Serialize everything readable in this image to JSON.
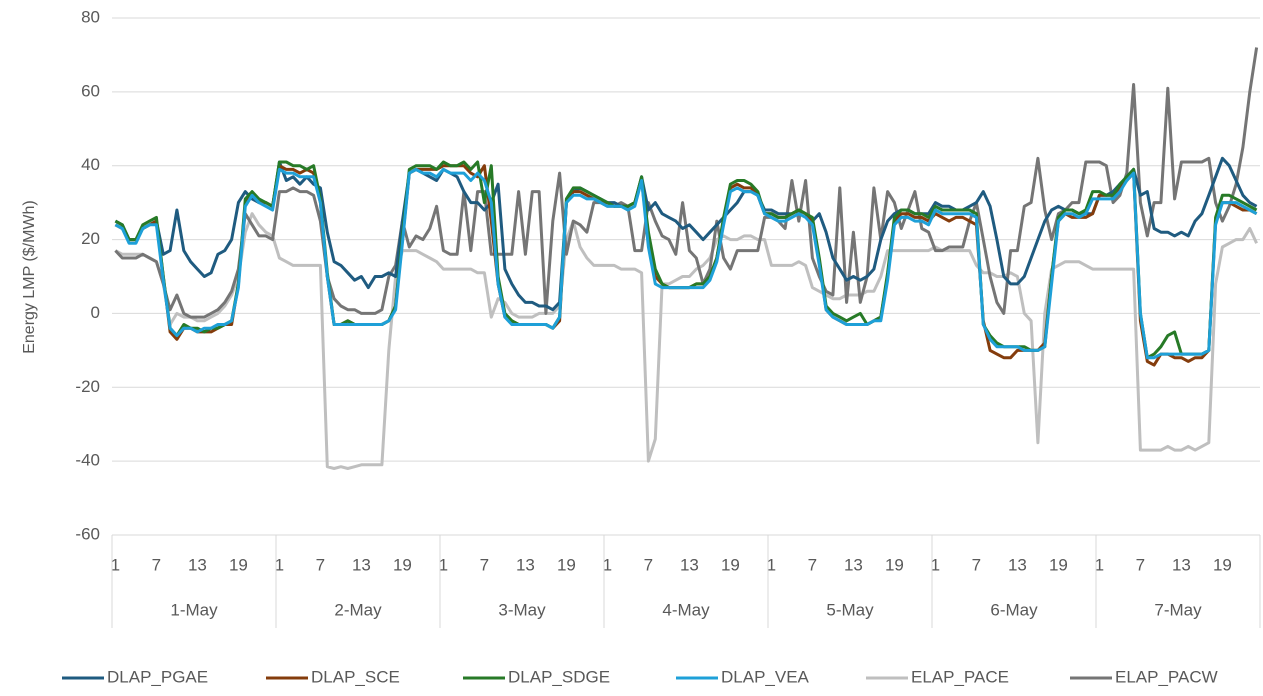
{
  "chart_data": {
    "type": "line",
    "y_label": "Energy LMP ($/MWh)",
    "ylim": [
      -60,
      80
    ],
    "yticks": [
      -60,
      -40,
      -20,
      0,
      20,
      40,
      60,
      80
    ],
    "grid": true,
    "legend": "bottom",
    "groups": [
      "1-May",
      "2-May",
      "3-May",
      "4-May",
      "5-May",
      "6-May",
      "7-May"
    ],
    "categories": [
      "1",
      null,
      null,
      null,
      null,
      null,
      "7",
      null,
      null,
      null,
      null,
      null,
      "13",
      null,
      null,
      null,
      null,
      null,
      "19",
      null,
      null,
      null,
      null,
      null,
      "1",
      null,
      null,
      null,
      null,
      null,
      "7",
      null,
      null,
      null,
      null,
      null,
      "13",
      null,
      null,
      null,
      null,
      null,
      "19",
      null,
      null,
      null,
      null,
      null,
      "1",
      null,
      null,
      null,
      null,
      null,
      "7",
      null,
      null,
      null,
      null,
      null,
      "13",
      null,
      null,
      null,
      null,
      null,
      "19",
      null,
      null,
      null,
      null,
      null,
      "1",
      null,
      null,
      null,
      null,
      null,
      "7",
      null,
      null,
      null,
      null,
      null,
      "13",
      null,
      null,
      null,
      null,
      null,
      "19",
      null,
      null,
      null,
      null,
      null,
      "1",
      null,
      null,
      null,
      null,
      null,
      "7",
      null,
      null,
      null,
      null,
      null,
      "13",
      null,
      null,
      null,
      null,
      null,
      "19",
      null,
      null,
      null,
      null,
      null,
      "1",
      null,
      null,
      null,
      null,
      null,
      "7",
      null,
      null,
      null,
      null,
      null,
      "13",
      null,
      null,
      null,
      null,
      null,
      "19",
      null,
      null,
      null,
      null,
      null,
      "1",
      null,
      null,
      null,
      null,
      null,
      "7",
      null,
      null,
      null,
      null,
      null,
      "13",
      null,
      null,
      null,
      null,
      null,
      "19",
      null,
      null,
      null,
      null,
      null
    ],
    "series": [
      {
        "name": "DLAP_PGAE",
        "color": "#1f5b80",
        "values": [
          25,
          24,
          20,
          20,
          23,
          24,
          25,
          16,
          17,
          28,
          17,
          14,
          12,
          10,
          11,
          16,
          17,
          20,
          30,
          33,
          31,
          30,
          30,
          29,
          41,
          36,
          37,
          35,
          37,
          35,
          34,
          22,
          14,
          13,
          11,
          9,
          10,
          7,
          10,
          10,
          11,
          10,
          25,
          38,
          39,
          38,
          37,
          36,
          39,
          38,
          37,
          33,
          30,
          30,
          28,
          30,
          35,
          12,
          8,
          5,
          3,
          3,
          2,
          2,
          1,
          3,
          30,
          33,
          34,
          33,
          32,
          31,
          30,
          30,
          29,
          29,
          30,
          37,
          28,
          30,
          27,
          26,
          25,
          23,
          24,
          22,
          20,
          22,
          24,
          26,
          28,
          30,
          33,
          33,
          32,
          28,
          28,
          27,
          27,
          27,
          28,
          27,
          25,
          27,
          22,
          15,
          12,
          9,
          10,
          9,
          10,
          12,
          20,
          25,
          27,
          28,
          28,
          27,
          27,
          27,
          30,
          29,
          29,
          28,
          28,
          29,
          30,
          33,
          29,
          20,
          10,
          8,
          8,
          10,
          15,
          20,
          25,
          28,
          29,
          28,
          28,
          27,
          27,
          27,
          32,
          32,
          33,
          35,
          37,
          39,
          32,
          33,
          23,
          22,
          22,
          21,
          22,
          21,
          25,
          27,
          32,
          37,
          42,
          40,
          36,
          32,
          30,
          29
        ]
      },
      {
        "name": "DLAP_SCE",
        "color": "#843c0c",
        "values": [
          24,
          23,
          20,
          20,
          23,
          24,
          25,
          10,
          -5,
          -7,
          -4,
          -4,
          -5,
          -5,
          -5,
          -4,
          -3,
          -3,
          8,
          30,
          32,
          30,
          30,
          29,
          40,
          39,
          39,
          38,
          39,
          38,
          30,
          10,
          -3,
          -3,
          -2,
          -3,
          -3,
          -3,
          -3,
          -3,
          -2,
          2,
          20,
          38,
          39,
          39,
          39,
          39,
          40,
          40,
          40,
          40,
          38,
          37,
          40,
          25,
          8,
          -1,
          -2,
          -3,
          -3,
          -3,
          -3,
          -3,
          -4,
          -2,
          30,
          33,
          33,
          32,
          31,
          30,
          30,
          29,
          29,
          29,
          30,
          36,
          20,
          10,
          8,
          7,
          7,
          7,
          7,
          8,
          8,
          10,
          15,
          25,
          34,
          35,
          34,
          34,
          32,
          27,
          27,
          26,
          26,
          27,
          28,
          27,
          25,
          14,
          1,
          -1,
          -2,
          -3,
          -3,
          -3,
          -3,
          -2,
          -1,
          10,
          25,
          27,
          27,
          26,
          26,
          25,
          27,
          26,
          25,
          26,
          26,
          25,
          24,
          -2,
          -10,
          -11,
          -12,
          -12,
          -10,
          -10,
          -10,
          -10,
          -8,
          10,
          25,
          27,
          26,
          26,
          26,
          27,
          32,
          32,
          32,
          34,
          36,
          38,
          -2,
          -13,
          -14,
          -11,
          -11,
          -12,
          -12,
          -13,
          -12,
          -12,
          -10,
          25,
          30,
          30,
          29,
          28,
          28,
          27
        ]
      },
      {
        "name": "DLAP_SDGE",
        "color": "#277a27",
        "values": [
          25,
          24,
          20,
          20,
          24,
          25,
          26,
          10,
          -4,
          -6,
          -3,
          -4,
          -4,
          -5,
          -4,
          -4,
          -3,
          -2,
          8,
          31,
          33,
          31,
          30,
          29,
          41,
          41,
          40,
          40,
          39,
          40,
          31,
          11,
          -3,
          -3,
          -2,
          -3,
          -3,
          -3,
          -3,
          -3,
          -2,
          2,
          21,
          39,
          40,
          40,
          40,
          39,
          41,
          40,
          40,
          41,
          39,
          41,
          30,
          40,
          10,
          0,
          -2,
          -3,
          -3,
          -3,
          -3,
          -3,
          -4,
          -1,
          31,
          34,
          34,
          33,
          32,
          31,
          30,
          29,
          29,
          29,
          30,
          37,
          22,
          12,
          8,
          7,
          7,
          7,
          7,
          8,
          8,
          10,
          15,
          26,
          35,
          36,
          36,
          35,
          33,
          27,
          27,
          26,
          26,
          27,
          28,
          27,
          26,
          15,
          2,
          0,
          -1,
          -2,
          -1,
          0,
          -3,
          -2,
          -1,
          11,
          26,
          28,
          28,
          27,
          27,
          26,
          29,
          28,
          28,
          28,
          28,
          28,
          27,
          -3,
          -6,
          -8,
          -9,
          -9,
          -9,
          -9,
          -10,
          -10,
          -9,
          10,
          26,
          28,
          28,
          27,
          28,
          33,
          33,
          32,
          32,
          35,
          37,
          39,
          0,
          -12,
          -11,
          -9,
          -6,
          -5,
          -11,
          -11,
          -11,
          -11,
          -10,
          26,
          32,
          32,
          31,
          30,
          29,
          28
        ]
      },
      {
        "name": "DLAP_VEA",
        "color": "#1ea0d8",
        "values": [
          24,
          23,
          19,
          19,
          23,
          24,
          24,
          9,
          -4,
          -6,
          -4,
          -4,
          -5,
          -4,
          -4,
          -3,
          -3,
          -2,
          7,
          29,
          32,
          30,
          29,
          28,
          39,
          38,
          38,
          37,
          37,
          37,
          30,
          10,
          -3,
          -3,
          -3,
          -3,
          -3,
          -3,
          -3,
          -3,
          -2,
          1,
          19,
          38,
          39,
          38,
          38,
          37,
          39,
          38,
          38,
          38,
          36,
          38,
          36,
          30,
          8,
          -1,
          -3,
          -3,
          -3,
          -3,
          -3,
          -3,
          -4,
          -1,
          30,
          32,
          32,
          31,
          31,
          30,
          29,
          29,
          29,
          28,
          29,
          36,
          18,
          8,
          7,
          7,
          7,
          7,
          7,
          7,
          7,
          9,
          14,
          24,
          33,
          34,
          33,
          33,
          32,
          27,
          26,
          25,
          25,
          26,
          27,
          26,
          24,
          13,
          1,
          -1,
          -2,
          -3,
          -3,
          -3,
          -3,
          -2,
          -2,
          9,
          24,
          26,
          26,
          25,
          25,
          24,
          28,
          27,
          27,
          27,
          27,
          27,
          26,
          -3,
          -7,
          -9,
          -9,
          -9,
          -9,
          -10,
          -10,
          -10,
          -9,
          8,
          25,
          27,
          27,
          26,
          27,
          31,
          31,
          31,
          31,
          33,
          36,
          38,
          0,
          -12,
          -12,
          -11,
          -11,
          -11,
          -11,
          -11,
          -11,
          -11,
          -10,
          24,
          30,
          30,
          30,
          29,
          28,
          27
        ]
      },
      {
        "name": "ELAP_PACE",
        "color": "#bfbfbf",
        "values": [
          17,
          16,
          16,
          16,
          16,
          15,
          14,
          8,
          -3,
          0,
          -1,
          -1,
          -2,
          -2,
          -1,
          0,
          2,
          5,
          10,
          22,
          27,
          24,
          22,
          21,
          15,
          14,
          13,
          13,
          13,
          13,
          13,
          -41.5,
          -42,
          -41.5,
          -42,
          -41.5,
          -41,
          -41,
          -41,
          -41,
          -10,
          10,
          17,
          17,
          17,
          16,
          15,
          14,
          12,
          12,
          12,
          12,
          12,
          11,
          11,
          -1,
          4,
          3,
          0,
          -1,
          -1,
          -1,
          0,
          0,
          0,
          2,
          20,
          25,
          18,
          15,
          13,
          13,
          13,
          13,
          12,
          12,
          12,
          11,
          -40,
          -34,
          8,
          8,
          9,
          10,
          10,
          12,
          13,
          15,
          20,
          21,
          20,
          20,
          21,
          21,
          20,
          20,
          13,
          13,
          13,
          13,
          14,
          13,
          7,
          6,
          5,
          4,
          4,
          5,
          5,
          5,
          6,
          6,
          10,
          17,
          17,
          17,
          17,
          17,
          17,
          17,
          18,
          17,
          17,
          17,
          17,
          17,
          13,
          11,
          11,
          10,
          10,
          11,
          10,
          0,
          -2,
          -35,
          0,
          12,
          13,
          14,
          14,
          14,
          13,
          12,
          12,
          12,
          12,
          12,
          12,
          12,
          -37,
          -37,
          -37,
          -37,
          -36,
          -37,
          -37,
          -36,
          -37,
          -36,
          -35,
          8,
          18,
          19,
          20,
          20,
          23,
          19
        ]
      },
      {
        "name": "ELAP_PACW",
        "color": "#757575",
        "values": [
          17,
          15,
          15,
          15,
          16,
          15,
          14,
          8,
          1,
          5,
          0,
          -1,
          -1,
          -1,
          0,
          1,
          3,
          6,
          12,
          27,
          24,
          21,
          21,
          20,
          33,
          33,
          34,
          33,
          33,
          32,
          25,
          10,
          4,
          2,
          1,
          1,
          0,
          0,
          0,
          1,
          10,
          13,
          25,
          18,
          21,
          20,
          23,
          29,
          17,
          16,
          16,
          33,
          17,
          33,
          33,
          16,
          16,
          16,
          16,
          33,
          16,
          33,
          33,
          0,
          25,
          38,
          16,
          25,
          24,
          22,
          30,
          30,
          29,
          29,
          30,
          29,
          17,
          17,
          30,
          25,
          21,
          20,
          16,
          30,
          17,
          15,
          8,
          12,
          25,
          15,
          12,
          17,
          17,
          17,
          17,
          26,
          26,
          25,
          23,
          36,
          25,
          36,
          15,
          10,
          6,
          5,
          34,
          3,
          22,
          3,
          10,
          34,
          20,
          33,
          30,
          23,
          28,
          33,
          23,
          22,
          17,
          17,
          18,
          18,
          18,
          25,
          30,
          20,
          10,
          3,
          0,
          17,
          17,
          29,
          30,
          42,
          28,
          20,
          27,
          28,
          30,
          30,
          41,
          41,
          41,
          40,
          30,
          32,
          38,
          62,
          30,
          21,
          30,
          30,
          61,
          31,
          41,
          41,
          41,
          41,
          42,
          30,
          25,
          29,
          35,
          45,
          60,
          72
        ]
      }
    ]
  }
}
